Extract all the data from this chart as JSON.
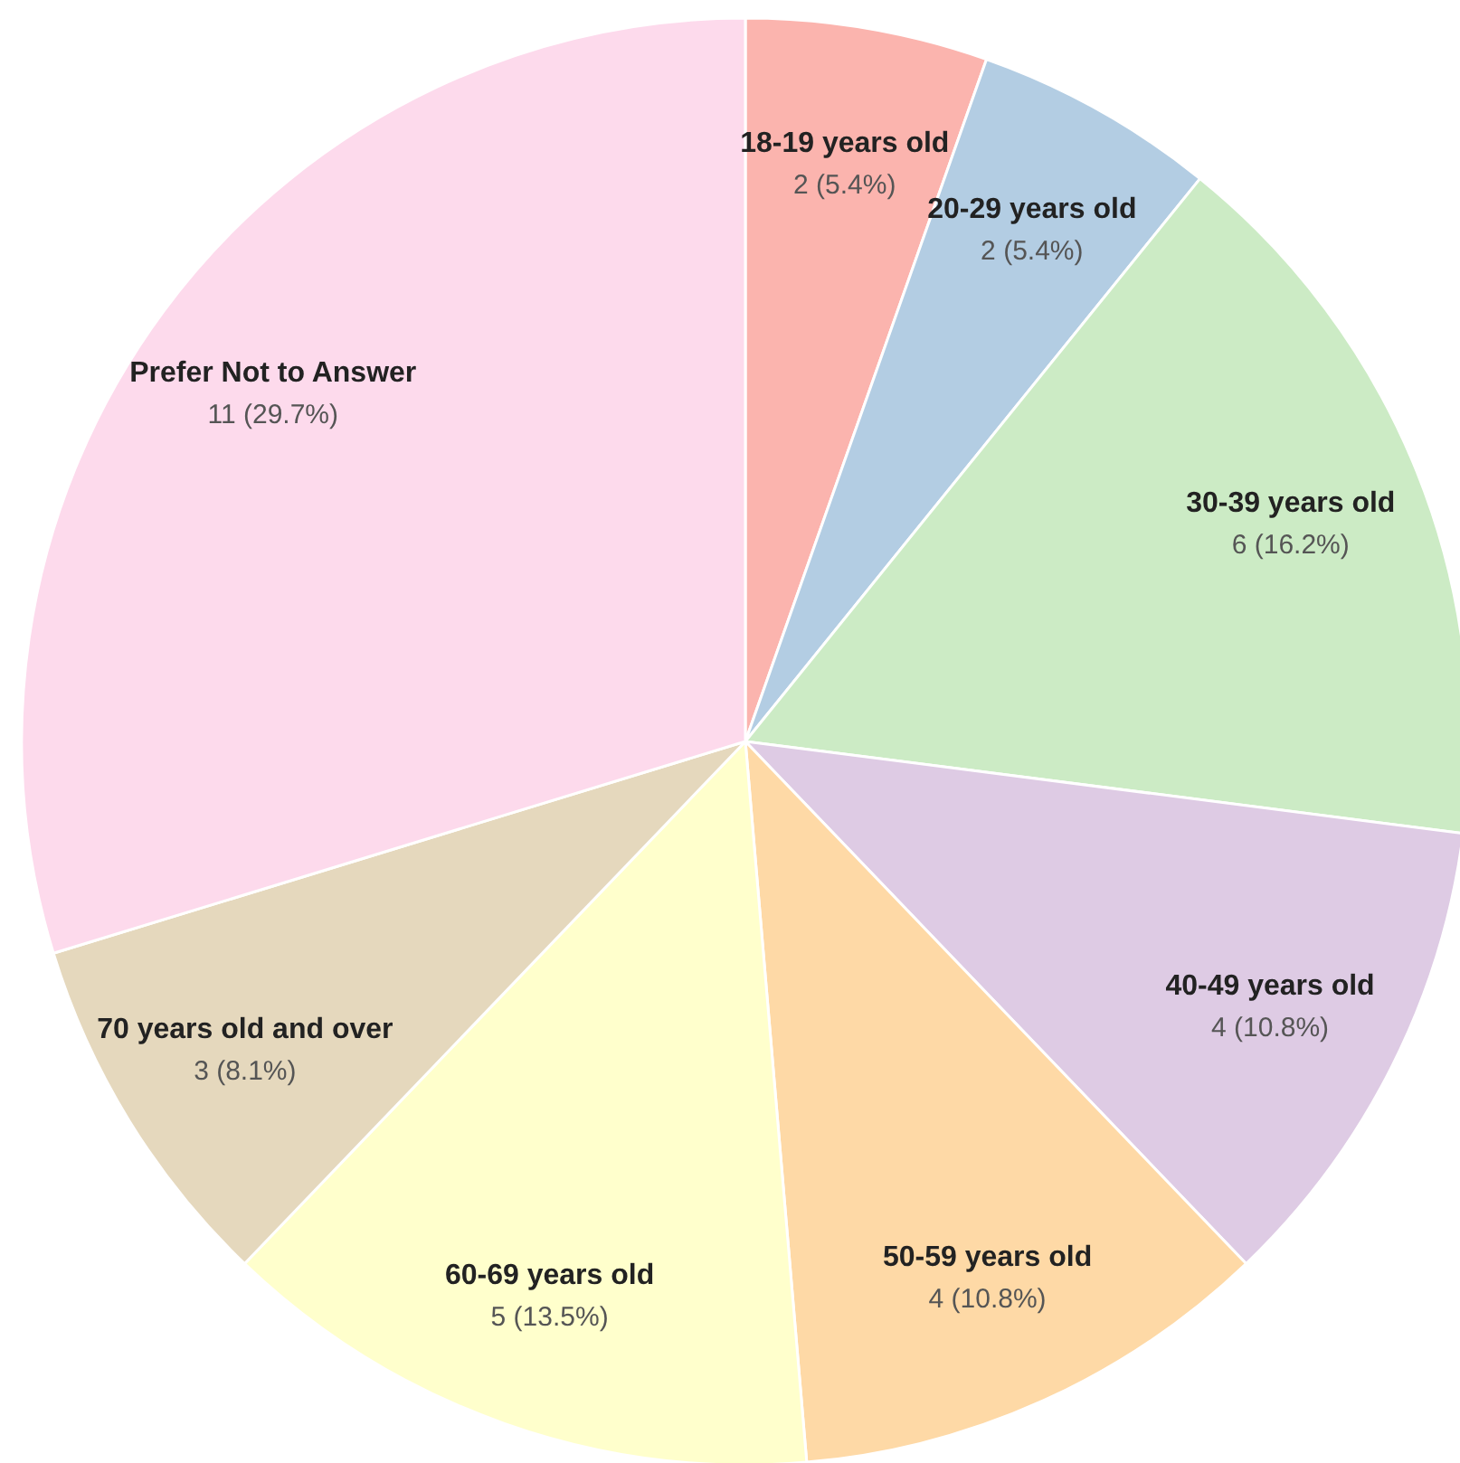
{
  "chart_data": {
    "type": "pie",
    "categories": [
      "18-19 years old",
      "20-29 years old",
      "30-39 years old",
      "40-49 years old",
      "50-59 years old",
      "60-69 years old",
      "70 years old and over",
      "Prefer Not to Answer"
    ],
    "values": [
      2,
      2,
      6,
      4,
      4,
      5,
      3,
      11
    ],
    "value_labels": [
      "2 (5.4%)",
      "2 (5.4%)",
      "6 (16.2%)",
      "4 (10.8%)",
      "4 (10.8%)",
      "5 (13.5%)",
      "3 (8.1%)",
      "11 (29.7%)"
    ],
    "colors": [
      "#fbb4ae",
      "#b3cde3",
      "#ccebc5",
      "#decbe4",
      "#fed9a6",
      "#ffffcc",
      "#e5d8bd",
      "#fddaec"
    ],
    "legend": false
  }
}
